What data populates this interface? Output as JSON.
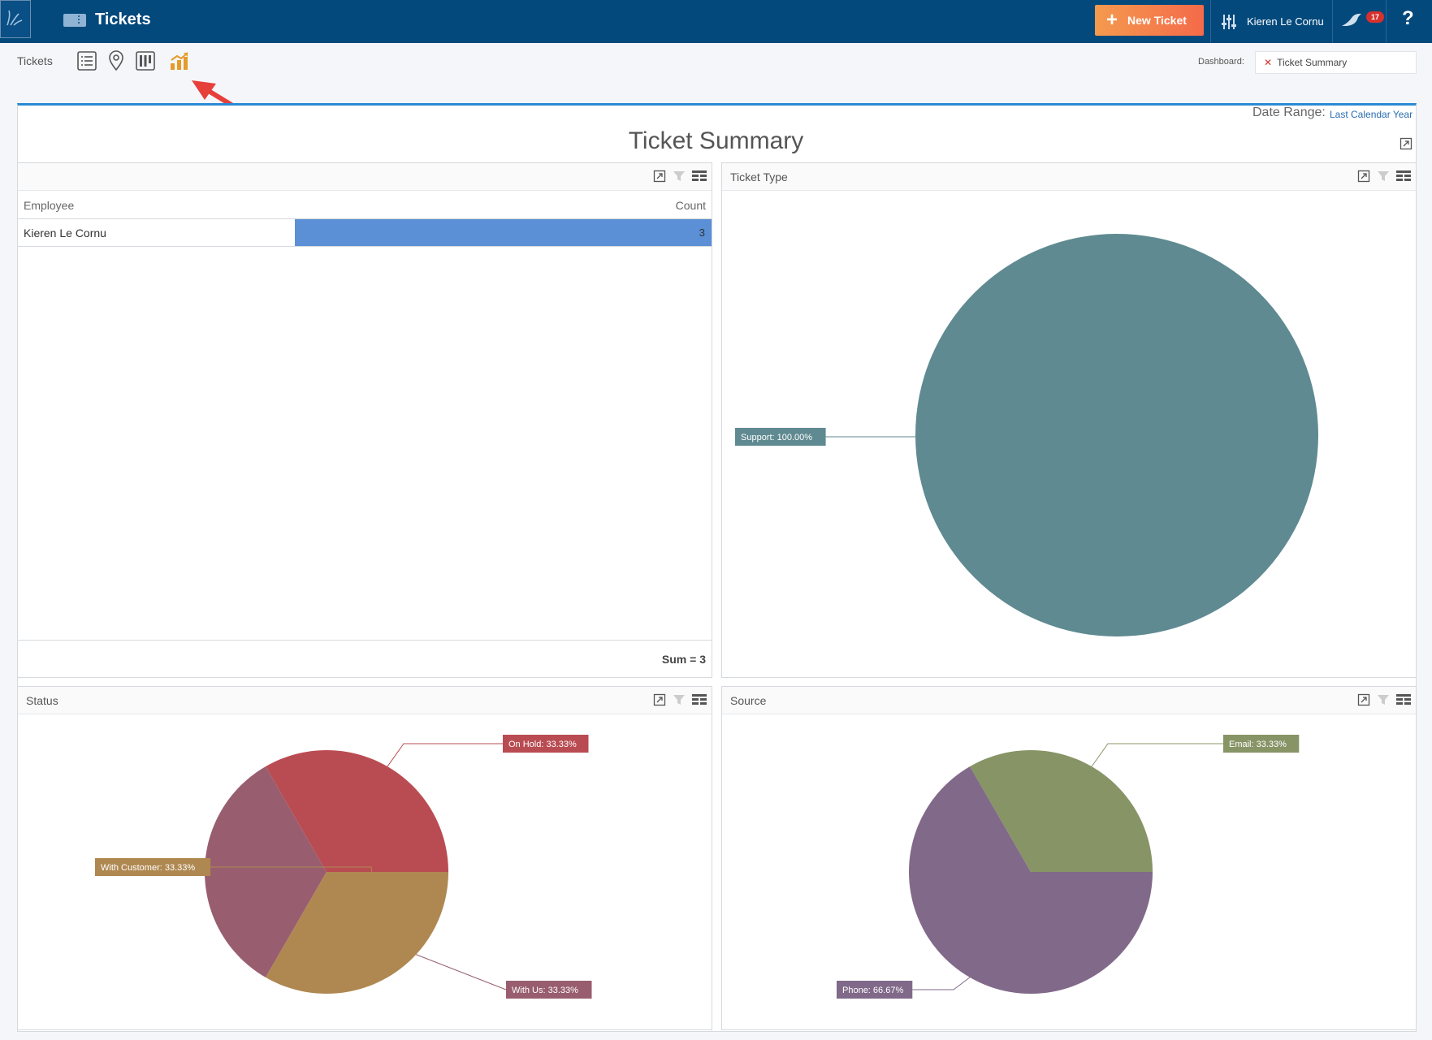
{
  "header": {
    "app_title": "Tickets",
    "new_ticket_label": "New Ticket",
    "user_name": "Kieren Le Cornu",
    "notification_count": "17",
    "help_label": "?"
  },
  "subbar": {
    "section_label": "Tickets",
    "views": [
      "list-view-icon",
      "map-view-icon",
      "board-view-icon",
      "chart-view-icon"
    ],
    "dashboard_label": "Dashboard:",
    "dashboard_value": "Ticket Summary",
    "annotation": "red-arrow-pointing-to-chart-view"
  },
  "dashboard": {
    "date_range_label": "Date Range:",
    "date_range_value": "Last Calendar Year",
    "title": "Ticket Summary"
  },
  "employee_grid": {
    "title": "",
    "columns": [
      "Employee",
      "Count"
    ],
    "rows": [
      {
        "employee": "Kieren Le Cornu",
        "count": "3"
      }
    ],
    "bar_fraction": 1.0,
    "footer": "Sum = 3"
  },
  "panels": {
    "ticket_type": "Ticket Type",
    "status": "Status",
    "source": "Source"
  },
  "colors": {
    "header_bg": "#04497c",
    "accent": "#2a8ad4",
    "new_ticket_start": "#f49a4e",
    "new_ticket_end": "#f46a4a",
    "grid_bar": "#5b8fd6"
  },
  "chart_data": [
    {
      "type": "pie",
      "panel": "Ticket Type",
      "slices": [
        {
          "label": "Support",
          "value": 100.0,
          "display": "Support: 100.00%",
          "color": "#5f8a91"
        }
      ]
    },
    {
      "type": "pie",
      "panel": "Status",
      "slices": [
        {
          "label": "On Hold",
          "value": 33.33,
          "display": "On Hold: 33.33%",
          "color": "#b94c52"
        },
        {
          "label": "With Us",
          "value": 33.33,
          "display": "With Us: 33.33%",
          "color": "#985e6f"
        },
        {
          "label": "With Customer",
          "value": 33.33,
          "display": "With Customer: 33.33%",
          "color": "#af8851"
        }
      ]
    },
    {
      "type": "pie",
      "panel": "Source",
      "slices": [
        {
          "label": "Email",
          "value": 33.33,
          "display": "Email: 33.33%",
          "color": "#879466"
        },
        {
          "label": "Phone",
          "value": 66.67,
          "display": "Phone: 66.67%",
          "color": "#816989"
        }
      ]
    }
  ]
}
